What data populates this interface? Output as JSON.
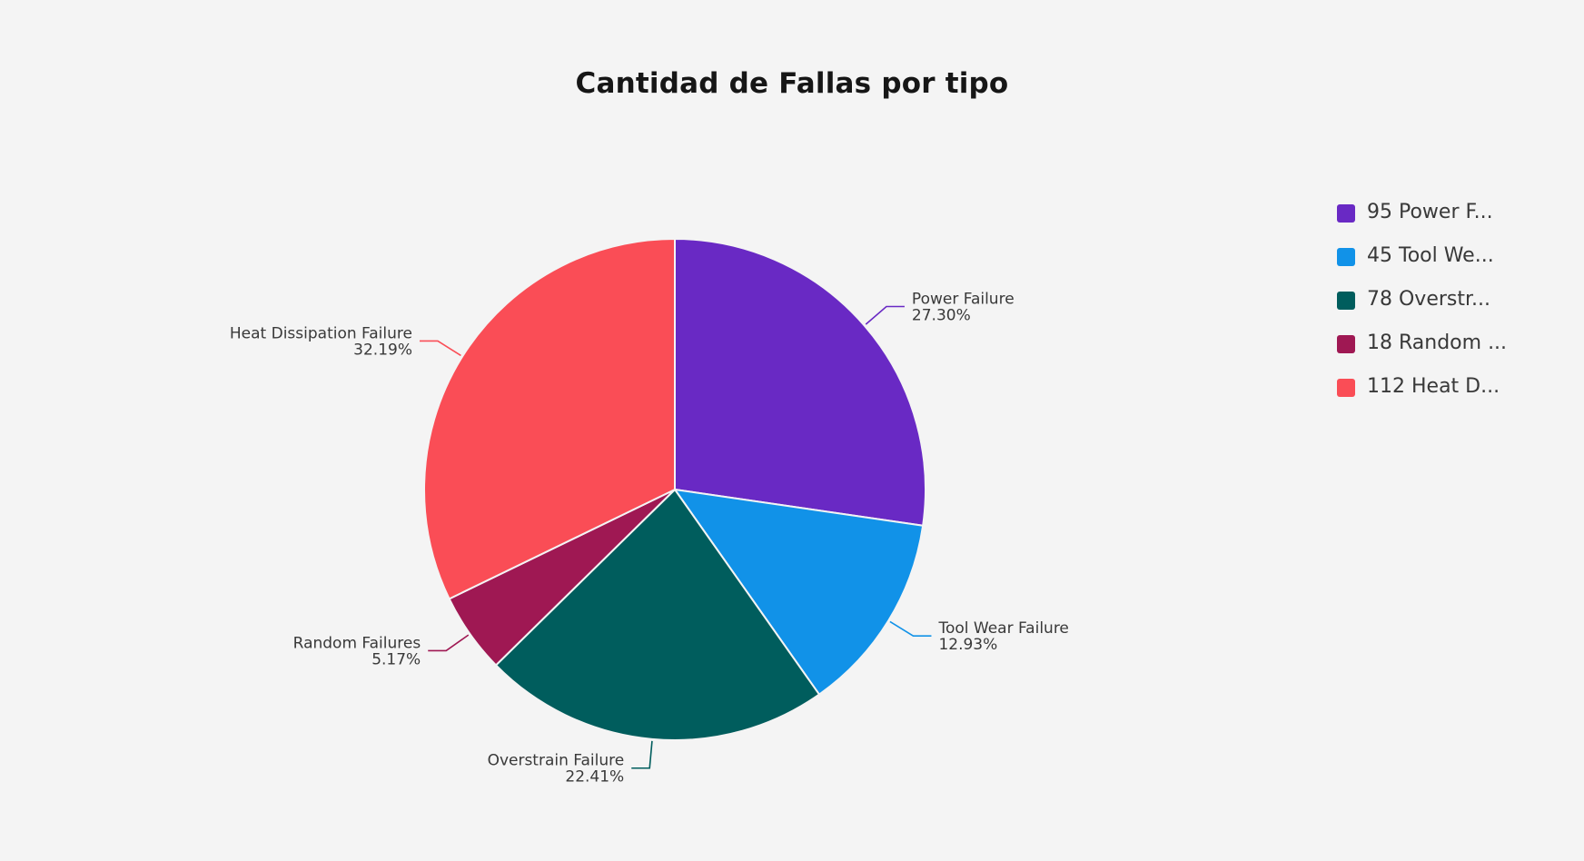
{
  "chart_data": {
    "type": "pie",
    "title": "Cantidad de Fallas por tipo",
    "slices": [
      {
        "name": "Power Failure",
        "value": 95,
        "percent_label": "27.30%",
        "color": "#6929c4",
        "legend_label": "95 Power F..."
      },
      {
        "name": "Tool Wear Failure",
        "value": 45,
        "percent_label": "12.93%",
        "color": "#1192e8",
        "legend_label": "45 Tool We..."
      },
      {
        "name": "Overstrain Failure",
        "value": 78,
        "percent_label": "22.41%",
        "color": "#005d5d",
        "legend_label": "78 Overstr..."
      },
      {
        "name": "Random Failures",
        "value": 18,
        "percent_label": "5.17%",
        "color": "#9f1853",
        "legend_label": "18 Random ..."
      },
      {
        "name": "Heat Dissipation Failure",
        "value": 112,
        "percent_label": "32.19%",
        "color": "#fa4d56",
        "legend_label": "112 Heat D..."
      }
    ],
    "legend_position": "right"
  }
}
